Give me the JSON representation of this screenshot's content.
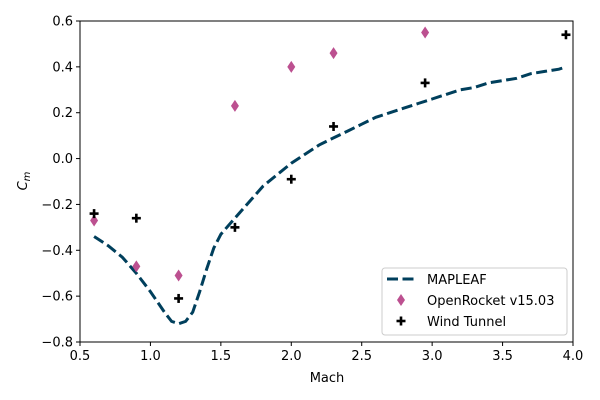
{
  "chart_data": {
    "type": "line",
    "xlabel": "Mach",
    "ylabel_main": "C",
    "ylabel_sub": "m",
    "xlim": [
      0.5,
      4.0
    ],
    "ylim": [
      -0.8,
      0.6
    ],
    "xticks": [
      "0.5",
      "1.0",
      "1.5",
      "2.0",
      "2.5",
      "3.0",
      "3.5",
      "4.0"
    ],
    "yticks": [
      "−0.8",
      "−0.6",
      "−0.4",
      "−0.2",
      "0.0",
      "0.2",
      "0.4",
      "0.6"
    ],
    "legend_position": "lower-right",
    "series": [
      {
        "name": "MAPLEAF",
        "style": "dashed-line",
        "color": "#003f5c",
        "points": [
          [
            0.6,
            -0.34
          ],
          [
            0.7,
            -0.38
          ],
          [
            0.8,
            -0.43
          ],
          [
            0.9,
            -0.5
          ],
          [
            1.0,
            -0.58
          ],
          [
            1.1,
            -0.67
          ],
          [
            1.15,
            -0.71
          ],
          [
            1.2,
            -0.72
          ],
          [
            1.25,
            -0.71
          ],
          [
            1.3,
            -0.67
          ],
          [
            1.35,
            -0.58
          ],
          [
            1.4,
            -0.48
          ],
          [
            1.45,
            -0.39
          ],
          [
            1.5,
            -0.33
          ],
          [
            1.6,
            -0.26
          ],
          [
            1.7,
            -0.19
          ],
          [
            1.8,
            -0.12
          ],
          [
            1.9,
            -0.07
          ],
          [
            2.0,
            -0.02
          ],
          [
            2.1,
            0.02
          ],
          [
            2.2,
            0.06
          ],
          [
            2.3,
            0.09
          ],
          [
            2.4,
            0.12
          ],
          [
            2.5,
            0.15
          ],
          [
            2.6,
            0.18
          ],
          [
            2.7,
            0.2
          ],
          [
            2.8,
            0.22
          ],
          [
            2.9,
            0.24
          ],
          [
            3.0,
            0.26
          ],
          [
            3.1,
            0.28
          ],
          [
            3.2,
            0.3
          ],
          [
            3.3,
            0.31
          ],
          [
            3.4,
            0.33
          ],
          [
            3.5,
            0.34
          ],
          [
            3.6,
            0.35
          ],
          [
            3.7,
            0.37
          ],
          [
            3.8,
            0.38
          ],
          [
            3.9,
            0.39
          ],
          [
            3.95,
            0.4
          ]
        ]
      },
      {
        "name": "OpenRocket v15.03",
        "style": "diamond-marker",
        "color": "#bc5090",
        "points": [
          [
            0.6,
            -0.27
          ],
          [
            0.9,
            -0.47
          ],
          [
            1.2,
            -0.51
          ],
          [
            1.6,
            0.23
          ],
          [
            2.0,
            0.4
          ],
          [
            2.3,
            0.46
          ],
          [
            2.95,
            0.55
          ]
        ]
      },
      {
        "name": "Wind Tunnel",
        "style": "plus-marker",
        "color": "#000000",
        "points": [
          [
            0.6,
            -0.24
          ],
          [
            0.9,
            -0.26
          ],
          [
            1.2,
            -0.61
          ],
          [
            1.6,
            -0.3
          ],
          [
            2.0,
            -0.09
          ],
          [
            2.3,
            0.14
          ],
          [
            2.95,
            0.33
          ],
          [
            3.95,
            0.54
          ]
        ]
      }
    ]
  }
}
